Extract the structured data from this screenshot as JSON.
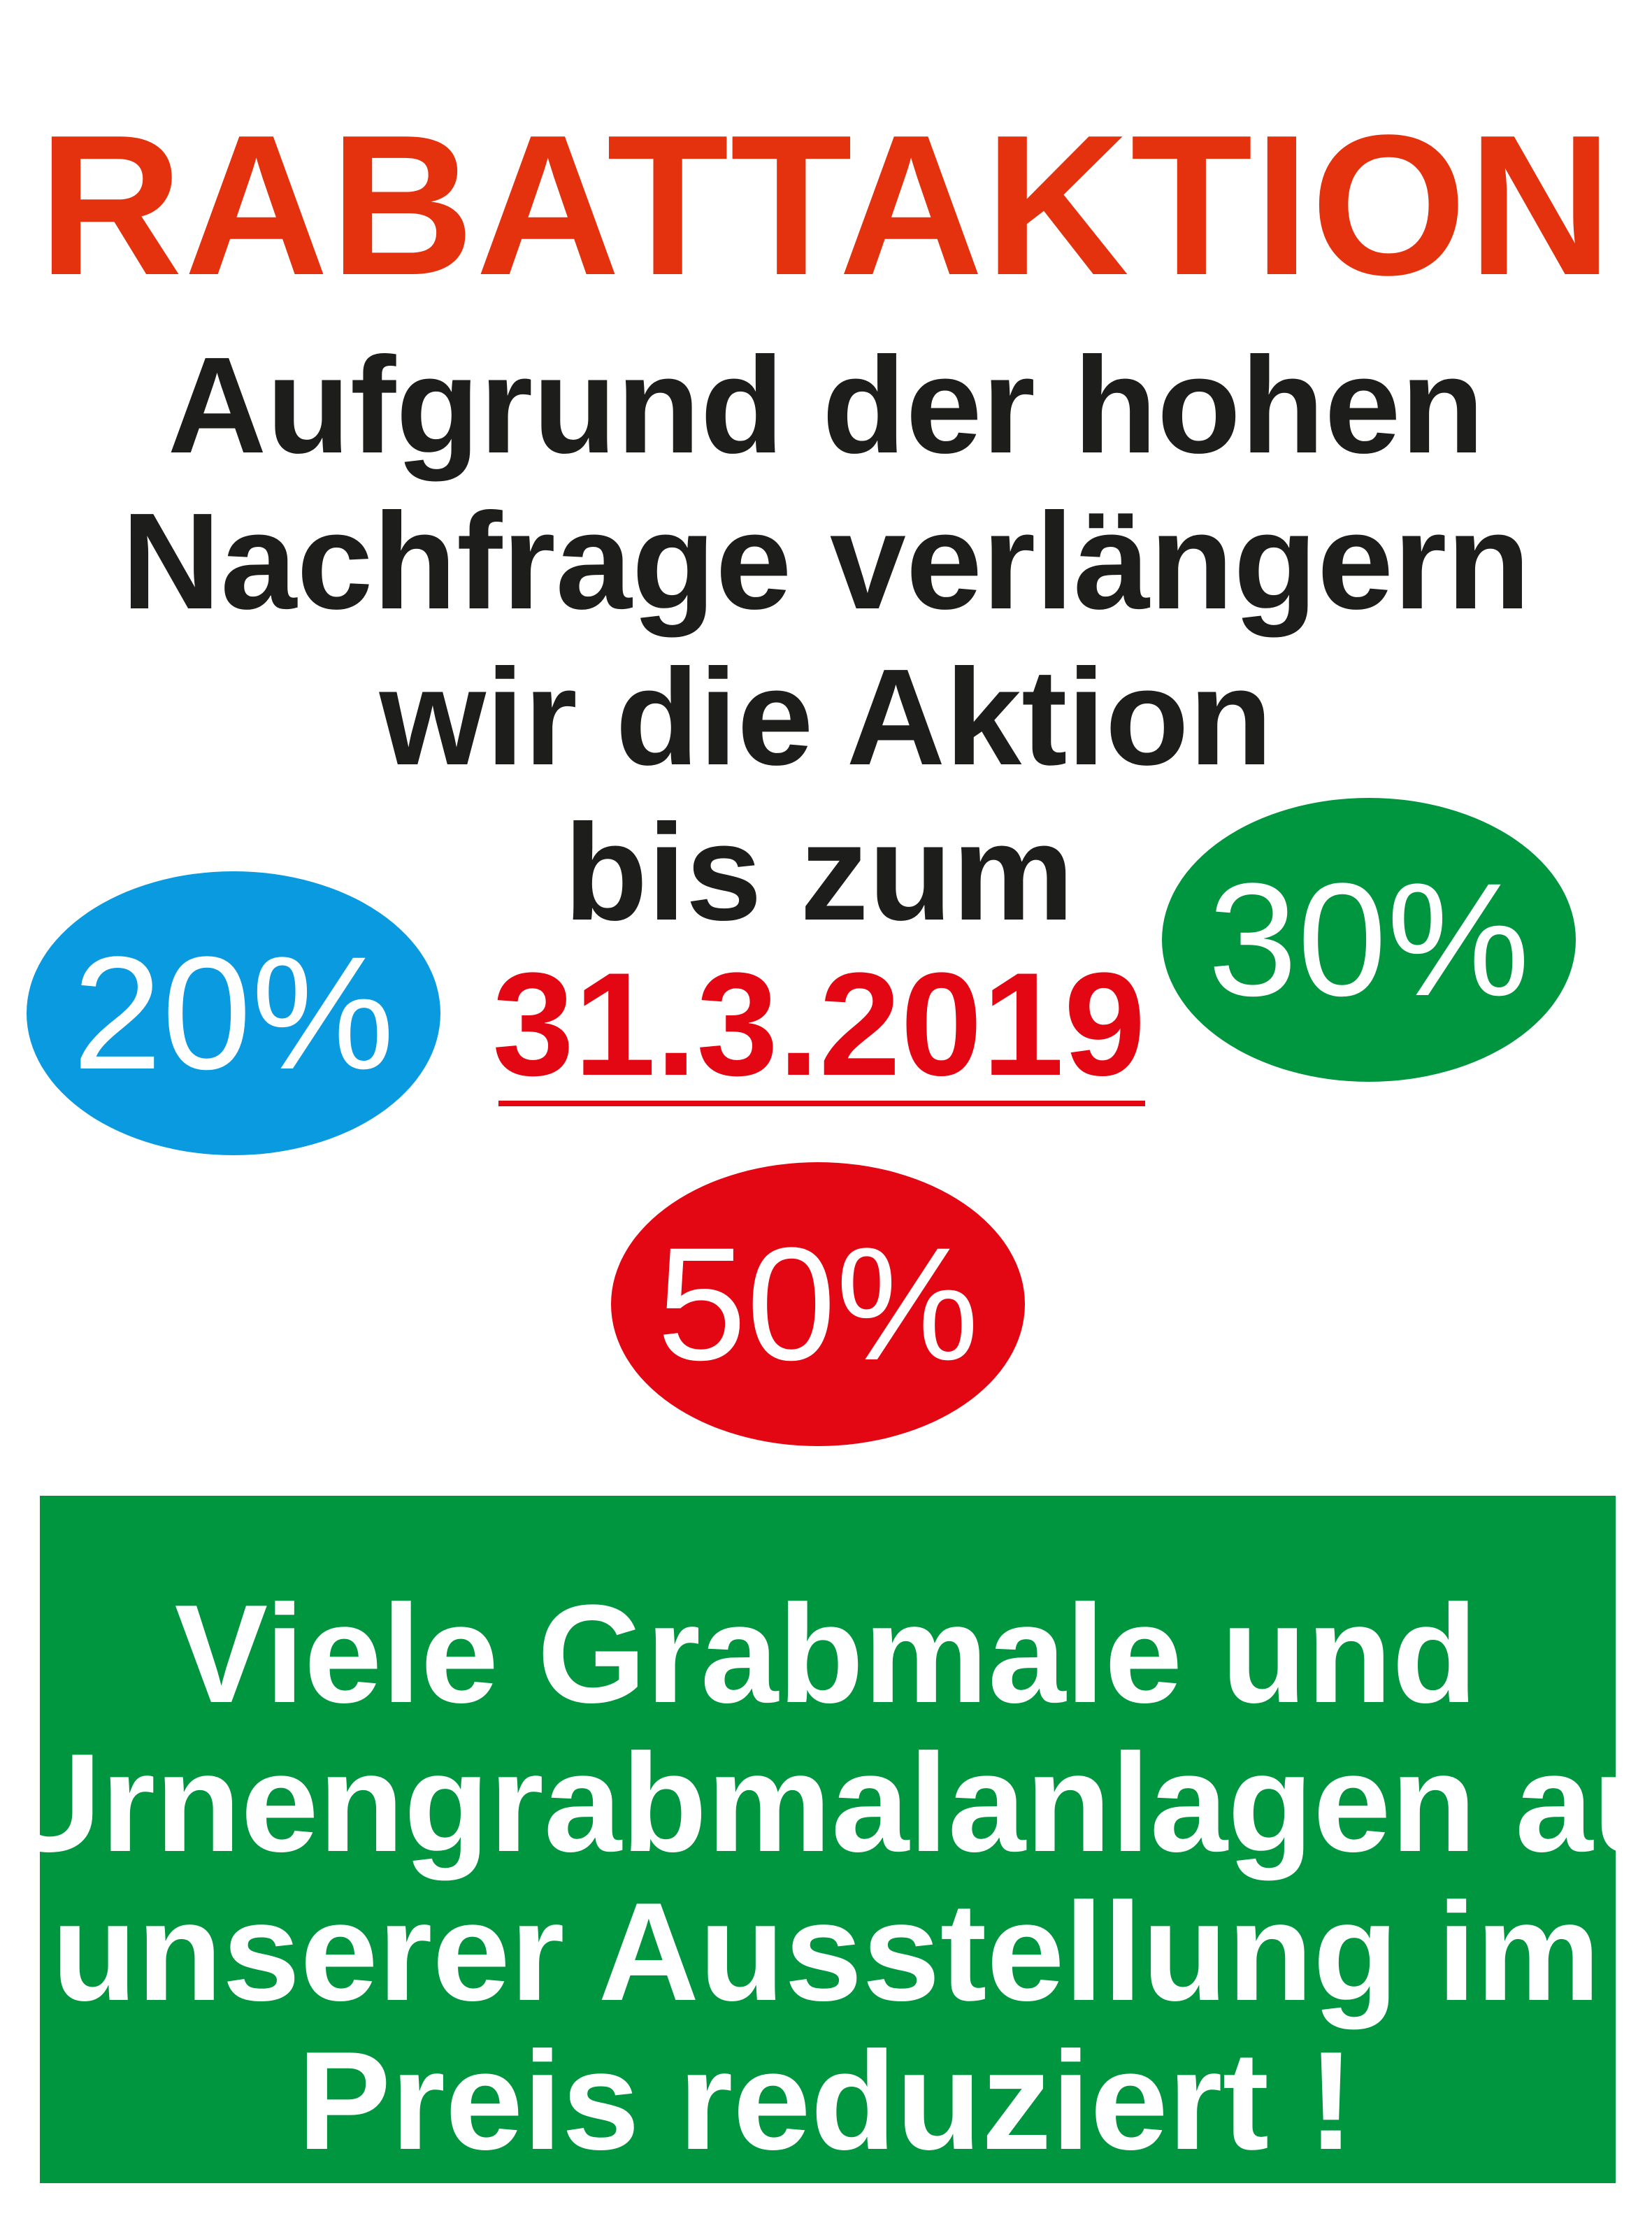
{
  "title": "RABATTAKTION",
  "message_lines": [
    "Aufgrund der hohen",
    "Nachfrage verlängern",
    "wir die Aktion",
    "bis zum"
  ],
  "end_date": "31.3.2019",
  "discounts": [
    {
      "label": "20%",
      "color": "#0a9ae0"
    },
    {
      "label": "30%",
      "color": "#009640"
    },
    {
      "label": "50%",
      "color": "#e30613"
    }
  ],
  "footer": {
    "color": "#009640",
    "lines": [
      "Viele Grabmale und",
      "Urnengrabmalanlagen aus",
      "unserer Ausstellung im",
      "Preis reduziert !"
    ]
  },
  "colors": {
    "title": "#e4320f",
    "text": "#1d1d1b",
    "date": "#e30613"
  }
}
